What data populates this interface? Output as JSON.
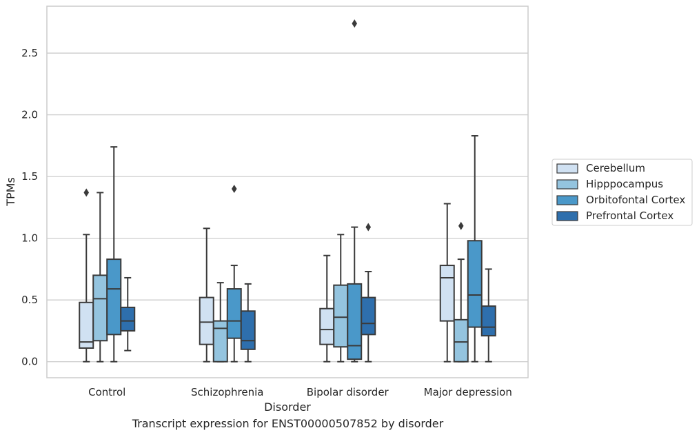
{
  "caption": "Transcript expression for ENST00000507852 by disorder",
  "chart_data": {
    "type": "box",
    "xlabel": "Disorder",
    "ylabel": "TPMs",
    "categories": [
      "Control",
      "Schizophrenia",
      "Bipolar disorder",
      "Major depression"
    ],
    "ylim": [
      -0.13,
      2.88
    ],
    "yticks": [
      0.0,
      0.5,
      1.0,
      1.5,
      2.0,
      2.5
    ],
    "ytick_labels": [
      "0.0",
      "0.5",
      "1.0",
      "1.5",
      "2.0",
      "2.5"
    ],
    "grid": "horizontal",
    "legend_position": "right",
    "series": [
      {
        "name": "Cerebellum",
        "color": "#d0e1f2",
        "boxes": [
          {
            "whislo": 0.0,
            "q1": 0.11,
            "med": 0.16,
            "q3": 0.48,
            "whishi": 1.03,
            "fliers": [
              1.37
            ]
          },
          {
            "whislo": 0.0,
            "q1": 0.14,
            "med": 0.32,
            "q3": 0.52,
            "whishi": 1.08,
            "fliers": []
          },
          {
            "whislo": 0.0,
            "q1": 0.14,
            "med": 0.26,
            "q3": 0.43,
            "whishi": 0.86,
            "fliers": []
          },
          {
            "whislo": 0.0,
            "q1": 0.33,
            "med": 0.68,
            "q3": 0.78,
            "whishi": 1.28,
            "fliers": []
          }
        ]
      },
      {
        "name": "Hipppocampus",
        "color": "#94c4df",
        "boxes": [
          {
            "whislo": 0.0,
            "q1": 0.17,
            "med": 0.51,
            "q3": 0.7,
            "whishi": 1.37,
            "fliers": []
          },
          {
            "whislo": 0.0,
            "q1": 0.0,
            "med": 0.27,
            "q3": 0.33,
            "whishi": 0.64,
            "fliers": []
          },
          {
            "whislo": 0.0,
            "q1": 0.12,
            "med": 0.36,
            "q3": 0.62,
            "whishi": 1.03,
            "fliers": []
          },
          {
            "whislo": 0.0,
            "q1": 0.0,
            "med": 0.16,
            "q3": 0.34,
            "whishi": 0.83,
            "fliers": [
              1.1
            ]
          }
        ]
      },
      {
        "name": "Orbitofontal Cortex",
        "color": "#4a98c9",
        "boxes": [
          {
            "whislo": 0.0,
            "q1": 0.22,
            "med": 0.59,
            "q3": 0.83,
            "whishi": 1.74,
            "fliers": []
          },
          {
            "whislo": 0.0,
            "q1": 0.19,
            "med": 0.33,
            "q3": 0.59,
            "whishi": 0.78,
            "fliers": [
              1.4
            ]
          },
          {
            "whislo": 0.0,
            "q1": 0.02,
            "med": 0.13,
            "q3": 0.63,
            "whishi": 1.09,
            "fliers": [
              2.74
            ]
          },
          {
            "whislo": 0.0,
            "q1": 0.28,
            "med": 0.54,
            "q3": 0.98,
            "whishi": 1.83,
            "fliers": []
          }
        ]
      },
      {
        "name": "Prefrontal Cortex",
        "color": "#2e6fad",
        "boxes": [
          {
            "whislo": 0.09,
            "q1": 0.25,
            "med": 0.33,
            "q3": 0.44,
            "whishi": 0.68,
            "fliers": []
          },
          {
            "whislo": 0.0,
            "q1": 0.1,
            "med": 0.17,
            "q3": 0.41,
            "whishi": 0.63,
            "fliers": []
          },
          {
            "whislo": 0.0,
            "q1": 0.22,
            "med": 0.31,
            "q3": 0.52,
            "whishi": 0.73,
            "fliers": [
              1.09
            ]
          },
          {
            "whislo": 0.0,
            "q1": 0.21,
            "med": 0.28,
            "q3": 0.45,
            "whishi": 0.75,
            "fliers": []
          }
        ]
      }
    ]
  }
}
